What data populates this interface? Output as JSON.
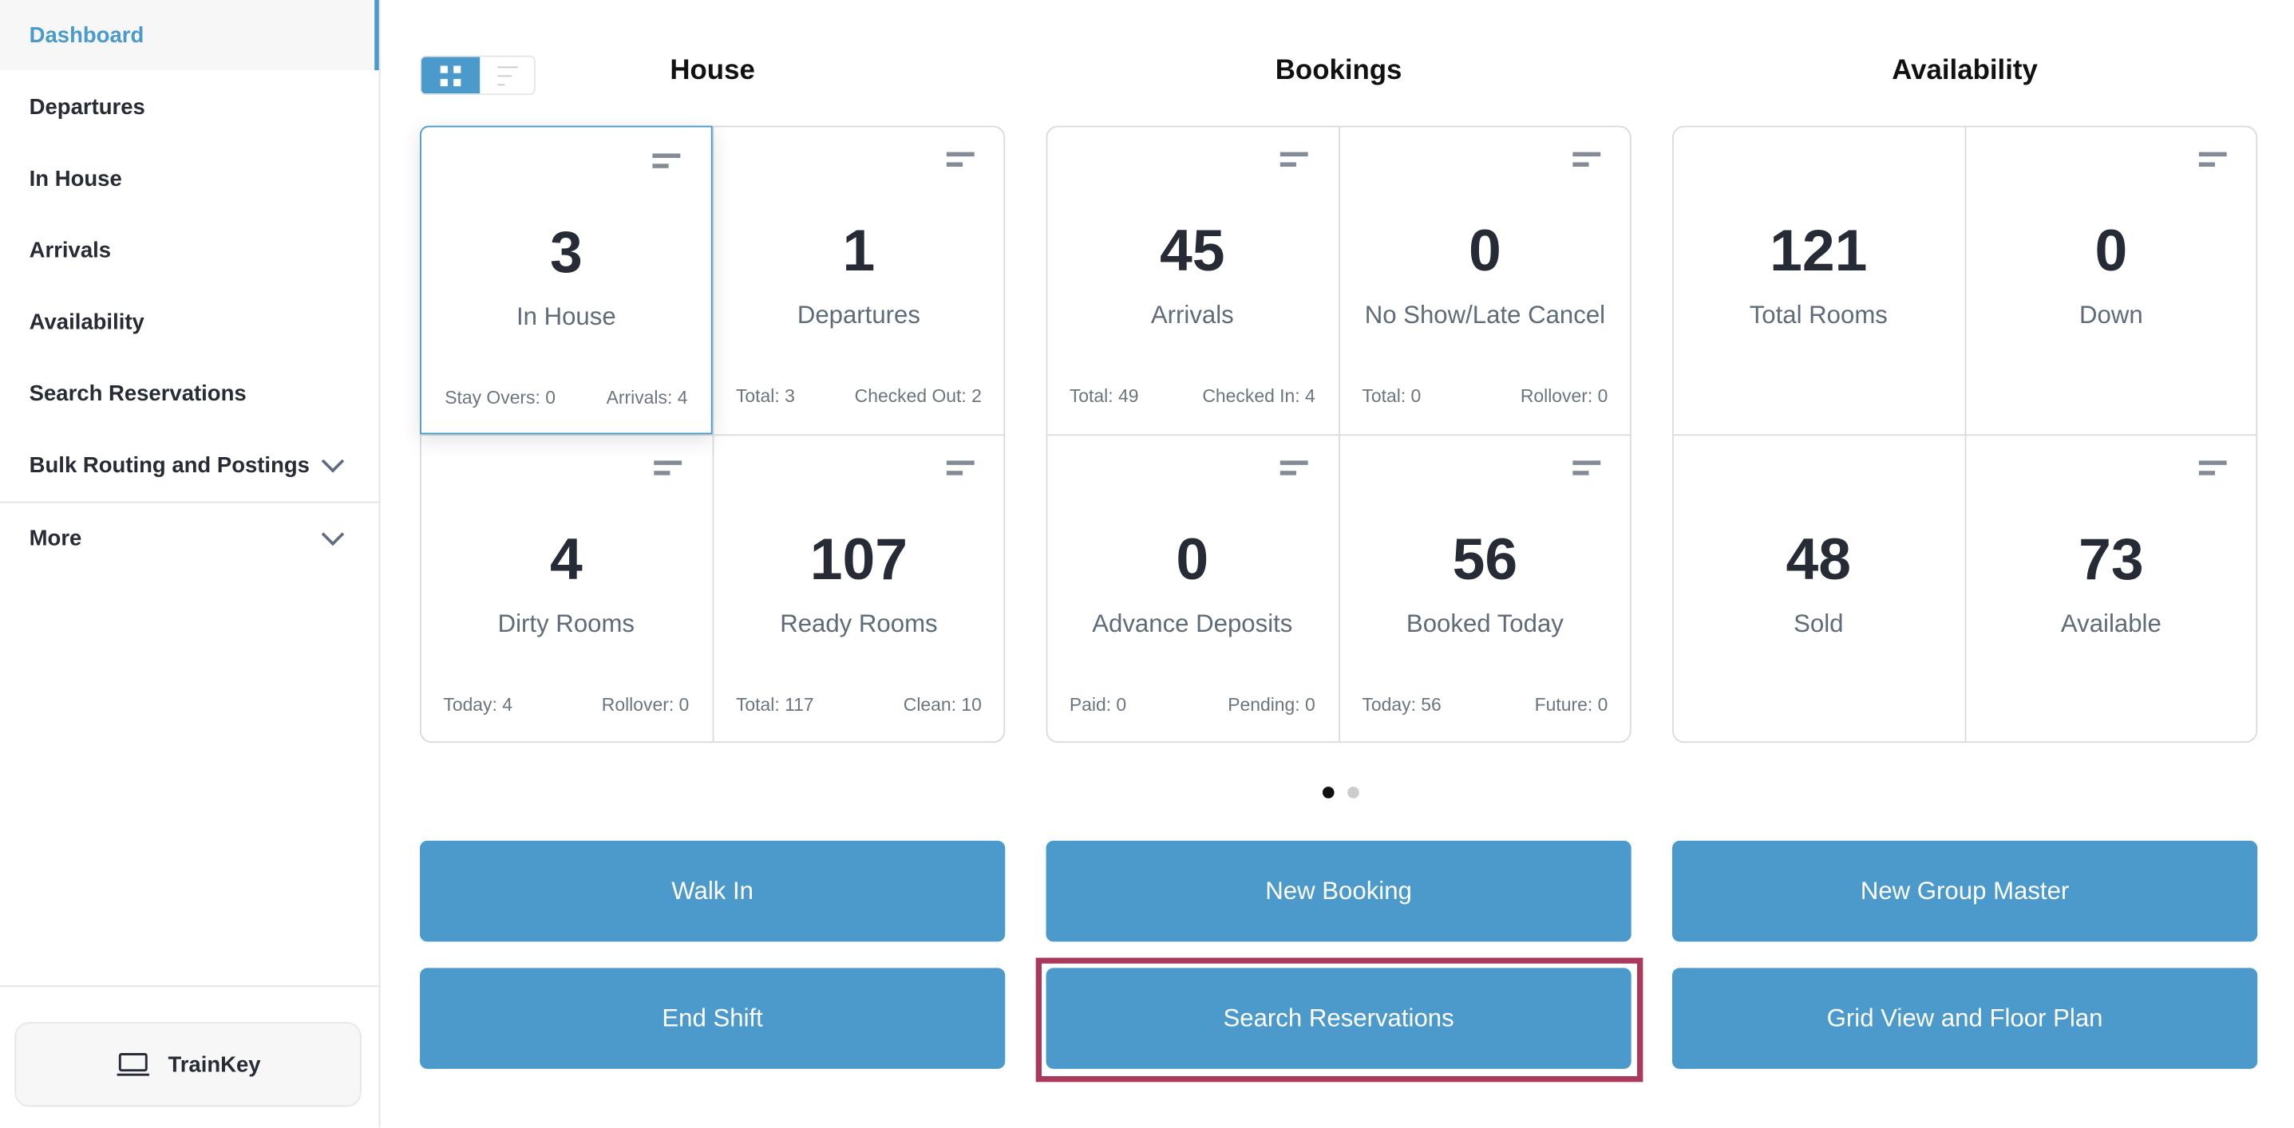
{
  "sidebar": {
    "items": [
      {
        "label": "Dashboard",
        "active": true
      },
      {
        "label": "Departures"
      },
      {
        "label": "In House"
      },
      {
        "label": "Arrivals"
      },
      {
        "label": "Availability"
      },
      {
        "label": "Search Reservations"
      },
      {
        "label": "Bulk Routing and Postings",
        "expandable": true
      },
      {
        "label": "More",
        "expandable": true
      }
    ],
    "trainkey": {
      "label": "TrainKey",
      "icon": "laptop-icon"
    }
  },
  "view_toggle": {
    "selected": "grid",
    "options": [
      "grid",
      "list"
    ]
  },
  "sections": [
    {
      "title": "House",
      "cells": [
        {
          "value": "3",
          "label": "In House",
          "left": "Stay Overs: 0",
          "right": "Arrivals: 4",
          "selected": true
        },
        {
          "value": "1",
          "label": "Departures",
          "left": "Total: 3",
          "right": "Checked Out: 2"
        },
        {
          "value": "4",
          "label": "Dirty Rooms",
          "left": "Today: 4",
          "right": "Rollover: 0"
        },
        {
          "value": "107",
          "label": "Ready Rooms",
          "left": "Total: 117",
          "right": "Clean: 10"
        }
      ]
    },
    {
      "title": "Bookings",
      "cells": [
        {
          "value": "45",
          "label": "Arrivals",
          "left": "Total: 49",
          "right": "Checked In: 4"
        },
        {
          "value": "0",
          "label": "No Show/Late Cancel",
          "left": "Total: 0",
          "right": "Rollover: 0"
        },
        {
          "value": "0",
          "label": "Advance Deposits",
          "left": "Paid: 0",
          "right": "Pending: 0"
        },
        {
          "value": "56",
          "label": "Booked Today",
          "left": "Today: 56",
          "right": "Future: 0"
        }
      ]
    },
    {
      "title": "Availability",
      "cells": [
        {
          "value": "121",
          "label": "Total Rooms",
          "left": "",
          "right": "",
          "menu": false
        },
        {
          "value": "0",
          "label": "Down",
          "left": "",
          "right": ""
        },
        {
          "value": "48",
          "label": "Sold",
          "left": "",
          "right": "",
          "menu": false
        },
        {
          "value": "73",
          "label": "Available",
          "left": "",
          "right": ""
        }
      ]
    }
  ],
  "pager": {
    "pages": 2,
    "current": 1
  },
  "actions": [
    "Walk In",
    "New Booking",
    "New Group Master",
    "End Shift",
    "Search Reservations",
    "Grid View and Floor Plan"
  ],
  "colors": {
    "accent": "#4b9acb",
    "highlight": "#a93a5c"
  }
}
